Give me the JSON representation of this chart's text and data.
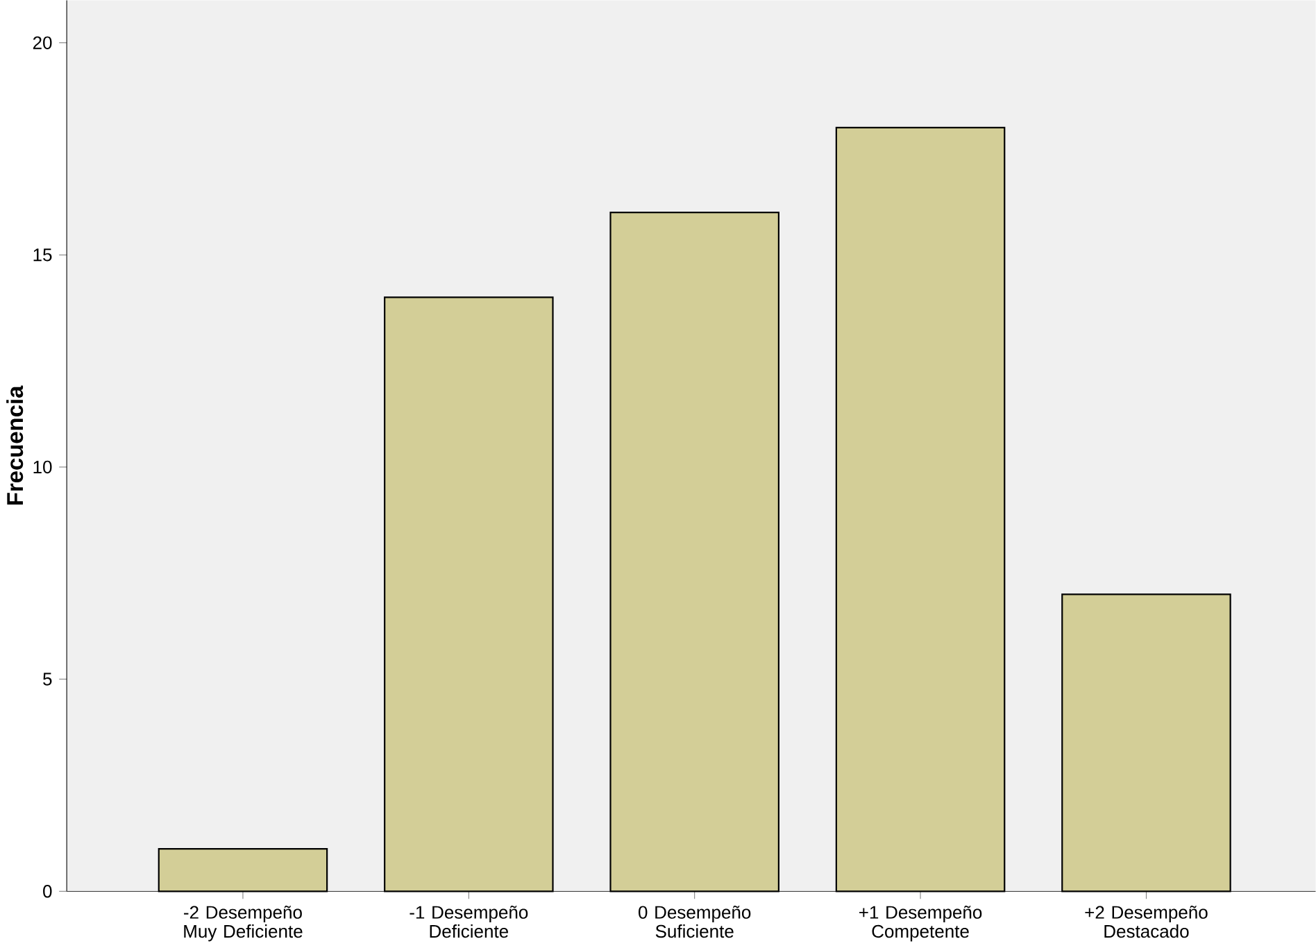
{
  "chart_data": {
    "type": "bar",
    "ylabel": "Frecuencia",
    "categories": [
      "-2 Desempeño Muy Deficiente",
      "-1 Desempeño Deficiente",
      "0 Desempeño Suficiente",
      "+1 Desempeño Competente",
      "+2 Desempeño Destacado"
    ],
    "values": [
      1,
      14,
      16,
      18,
      7
    ],
    "color": "#d3ce97",
    "ylim": [
      0,
      21
    ],
    "yticks": [
      0,
      5,
      10,
      15,
      20
    ],
    "grid": false
  }
}
